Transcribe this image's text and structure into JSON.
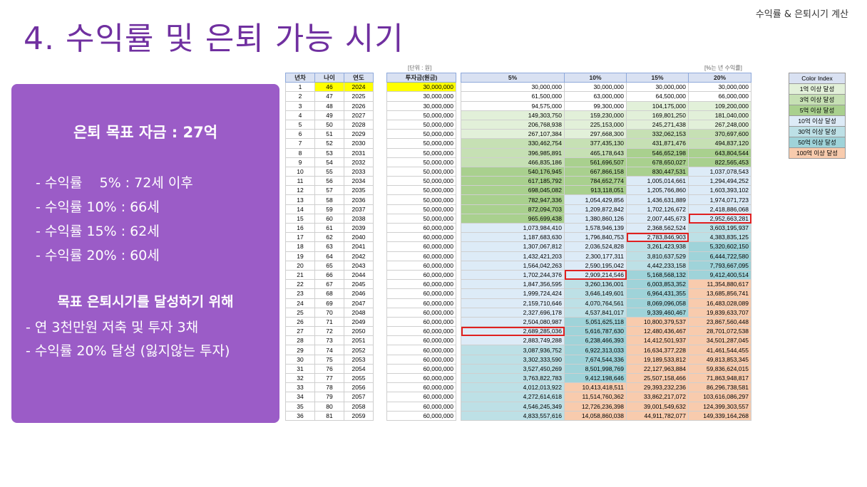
{
  "header": {
    "corner": "수익률 & 은퇴시기 계산",
    "title": "4. 수익률 및 은퇴 가능 시기"
  },
  "panel": {
    "goal": "은퇴 목표 자금 : 27억",
    "rates": [
      "- 수익률    5% : 72세 이후",
      "- 수익률 10% : 66세",
      "- 수익률 15% : 62세",
      "- 수익률 20% : 60세"
    ],
    "subtitle": "목표 은퇴시기를 달성하기 위해",
    "actions": [
      "- 연 3천만원 저축 및 투자 3채",
      "- 수익률 20% 달성 (잃지않는 투자)"
    ]
  },
  "sheet": {
    "unit_label": "[단위 : 원]",
    "rate_note": "[%는 년 수익률]",
    "headers": [
      "년차",
      "나이",
      "연도",
      "투자금(원금)",
      "5%",
      "10%",
      "15%",
      "20%"
    ],
    "rows": [
      [
        "1",
        "46",
        "2024",
        "30,000,000",
        "30,000,000",
        "30,000,000",
        "30,000,000",
        "30,000,000"
      ],
      [
        "2",
        "47",
        "2025",
        "30,000,000",
        "61,500,000",
        "63,000,000",
        "64,500,000",
        "66,000,000"
      ],
      [
        "3",
        "48",
        "2026",
        "30,000,000",
        "94,575,000",
        "99,300,000",
        "104,175,000",
        "109,200,000"
      ],
      [
        "4",
        "49",
        "2027",
        "50,000,000",
        "149,303,750",
        "159,230,000",
        "169,801,250",
        "181,040,000"
      ],
      [
        "5",
        "50",
        "2028",
        "50,000,000",
        "206,768,938",
        "225,153,000",
        "245,271,438",
        "267,248,000"
      ],
      [
        "6",
        "51",
        "2029",
        "50,000,000",
        "267,107,384",
        "297,668,300",
        "332,062,153",
        "370,697,600"
      ],
      [
        "7",
        "52",
        "2030",
        "50,000,000",
        "330,462,754",
        "377,435,130",
        "431,871,476",
        "494,837,120"
      ],
      [
        "8",
        "53",
        "2031",
        "50,000,000",
        "396,985,891",
        "465,178,643",
        "546,652,198",
        "643,804,544"
      ],
      [
        "9",
        "54",
        "2032",
        "50,000,000",
        "466,835,186",
        "561,696,507",
        "678,650,027",
        "822,565,453"
      ],
      [
        "10",
        "55",
        "2033",
        "50,000,000",
        "540,176,945",
        "667,866,158",
        "830,447,531",
        "1,037,078,543"
      ],
      [
        "11",
        "56",
        "2034",
        "50,000,000",
        "617,185,792",
        "784,652,774",
        "1,005,014,661",
        "1,294,494,252"
      ],
      [
        "12",
        "57",
        "2035",
        "50,000,000",
        "698,045,082",
        "913,118,051",
        "1,205,766,860",
        "1,603,393,102"
      ],
      [
        "13",
        "58",
        "2036",
        "50,000,000",
        "782,947,336",
        "1,054,429,856",
        "1,436,631,889",
        "1,974,071,723"
      ],
      [
        "14",
        "59",
        "2037",
        "50,000,000",
        "872,094,703",
        "1,209,872,842",
        "1,702,126,672",
        "2,418,886,068"
      ],
      [
        "15",
        "60",
        "2038",
        "50,000,000",
        "965,699,438",
        "1,380,860,126",
        "2,007,445,673",
        "2,952,663,281"
      ],
      [
        "16",
        "61",
        "2039",
        "60,000,000",
        "1,073,984,410",
        "1,578,946,139",
        "2,368,562,524",
        "3,603,195,937"
      ],
      [
        "17",
        "62",
        "2040",
        "60,000,000",
        "1,187,683,630",
        "1,796,840,753",
        "2,783,846,903",
        "4,383,835,125"
      ],
      [
        "18",
        "63",
        "2041",
        "60,000,000",
        "1,307,067,812",
        "2,036,524,828",
        "3,261,423,938",
        "5,320,602,150"
      ],
      [
        "19",
        "64",
        "2042",
        "60,000,000",
        "1,432,421,203",
        "2,300,177,311",
        "3,810,637,529",
        "6,444,722,580"
      ],
      [
        "20",
        "65",
        "2043",
        "60,000,000",
        "1,564,042,263",
        "2,590,195,042",
        "4,442,233,158",
        "7,793,667,095"
      ],
      [
        "21",
        "66",
        "2044",
        "60,000,000",
        "1,702,244,376",
        "2,909,214,546",
        "5,168,568,132",
        "9,412,400,514"
      ],
      [
        "22",
        "67",
        "2045",
        "60,000,000",
        "1,847,356,595",
        "3,260,136,001",
        "6,003,853,352",
        "11,354,880,617"
      ],
      [
        "23",
        "68",
        "2046",
        "60,000,000",
        "1,999,724,424",
        "3,646,149,601",
        "6,964,431,355",
        "13,685,856,741"
      ],
      [
        "24",
        "69",
        "2047",
        "60,000,000",
        "2,159,710,646",
        "4,070,764,561",
        "8,069,096,058",
        "16,483,028,089"
      ],
      [
        "25",
        "70",
        "2048",
        "60,000,000",
        "2,327,696,178",
        "4,537,841,017",
        "9,339,460,467",
        "19,839,633,707"
      ],
      [
        "26",
        "71",
        "2049",
        "60,000,000",
        "2,504,080,987",
        "5,051,625,118",
        "10,800,379,537",
        "23,867,560,448"
      ],
      [
        "27",
        "72",
        "2050",
        "60,000,000",
        "2,689,285,036",
        "5,616,787,630",
        "12,480,436,467",
        "28,701,072,538"
      ],
      [
        "28",
        "73",
        "2051",
        "60,000,000",
        "2,883,749,288",
        "6,238,466,393",
        "14,412,501,937",
        "34,501,287,045"
      ],
      [
        "29",
        "74",
        "2052",
        "60,000,000",
        "3,087,936,752",
        "6,922,313,033",
        "16,634,377,228",
        "41,461,544,455"
      ],
      [
        "30",
        "75",
        "2053",
        "60,000,000",
        "3,302,333,590",
        "7,674,544,336",
        "19,189,533,812",
        "49,813,853,345"
      ],
      [
        "31",
        "76",
        "2054",
        "60,000,000",
        "3,527,450,269",
        "8,501,998,769",
        "22,127,963,884",
        "59,836,624,015"
      ],
      [
        "32",
        "77",
        "2055",
        "60,000,000",
        "3,763,822,783",
        "9,412,198,646",
        "25,507,158,466",
        "71,863,948,817"
      ],
      [
        "33",
        "78",
        "2056",
        "60,000,000",
        "4,012,013,922",
        "10,413,418,511",
        "29,393,232,236",
        "86,296,738,581"
      ],
      [
        "34",
        "79",
        "2057",
        "60,000,000",
        "4,272,614,618",
        "11,514,760,362",
        "33,862,217,072",
        "103,616,086,297"
      ],
      [
        "35",
        "80",
        "2058",
        "60,000,000",
        "4,546,245,349",
        "12,726,236,398",
        "39,001,549,632",
        "124,399,303,557"
      ],
      [
        "36",
        "81",
        "2059",
        "60,000,000",
        "4,833,557,616",
        "14,058,860,038",
        "44,911,782,077",
        "149,339,164,268"
      ]
    ],
    "highlights": [
      [
        15,
        7
      ],
      [
        17,
        6
      ],
      [
        21,
        5
      ],
      [
        27,
        4
      ]
    ],
    "legend": {
      "title": "Color Index",
      "items": [
        {
          "label": "1억 이상 달성",
          "color": "#e2f0d9"
        },
        {
          "label": "3억 이상 달성",
          "color": "#c6e0b4"
        },
        {
          "label": "5억 이상 달성",
          "color": "#a9d08e"
        },
        {
          "label": "10억 이상 달성",
          "color": "#ddebf7"
        },
        {
          "label": "30억 이상 달성",
          "color": "#bde0e6"
        },
        {
          "label": "50억 이상 달성",
          "color": "#9fd3d9"
        },
        {
          "label": "100억 이상 달성",
          "color": "#f8cbad"
        }
      ]
    }
  }
}
